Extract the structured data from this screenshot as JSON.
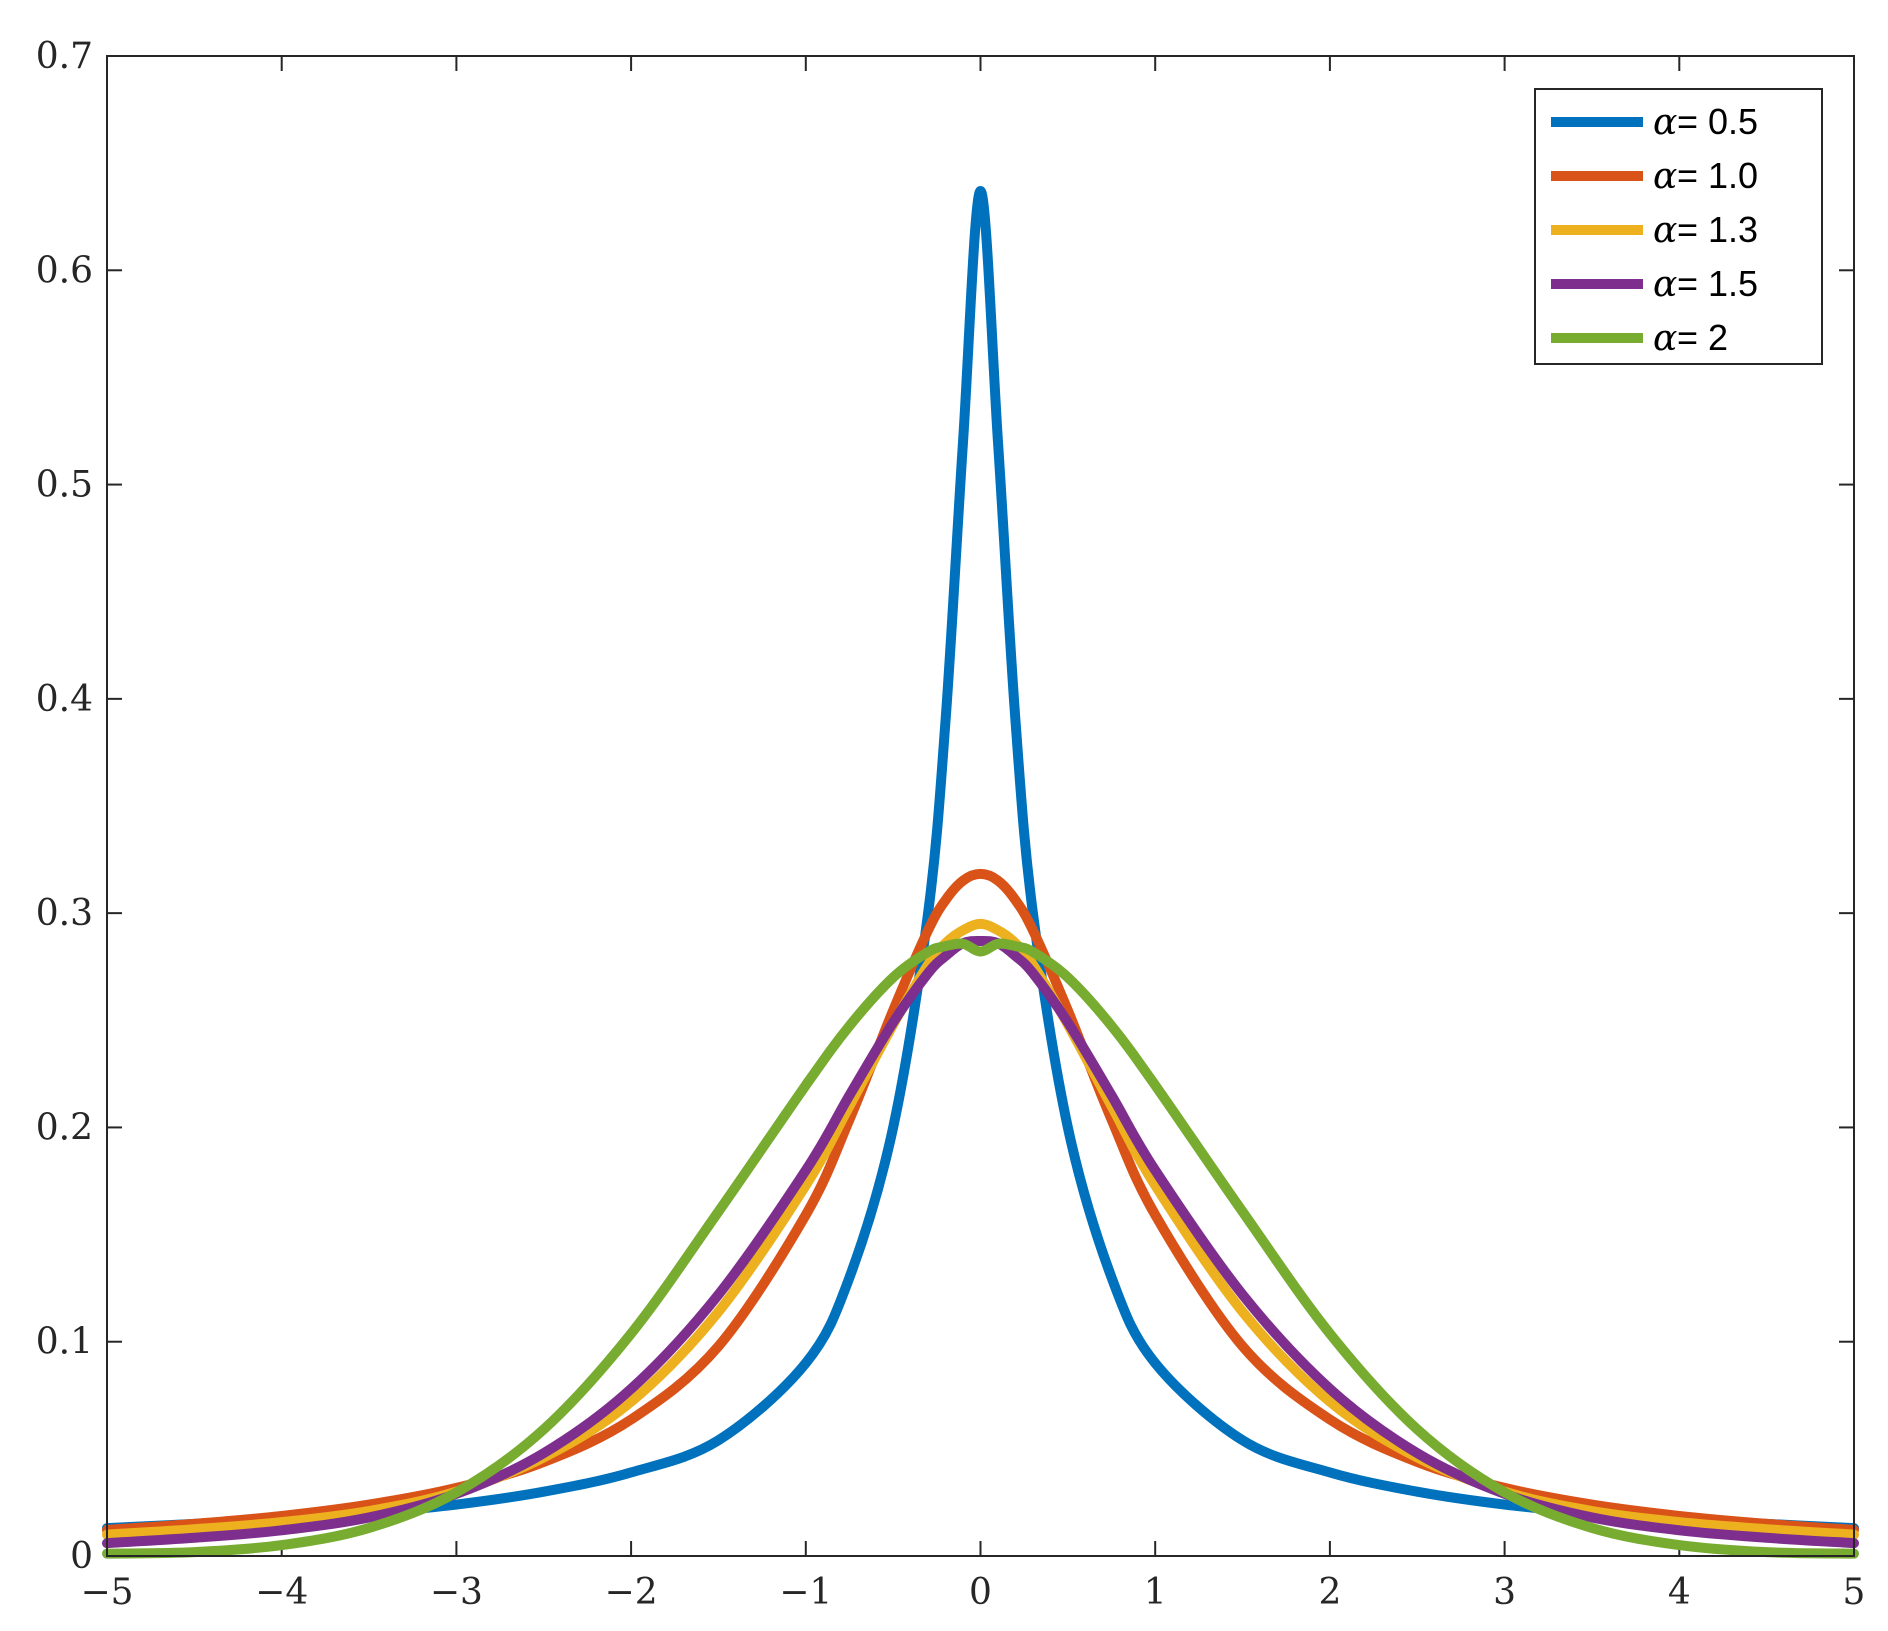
{
  "chart_data": {
    "type": "line",
    "title": "",
    "xlabel": "",
    "ylabel": "",
    "xlim": [
      -5,
      5
    ],
    "ylim": [
      0,
      0.7
    ],
    "grid": false,
    "legend_position": "top-right",
    "x_ticks": [
      -5,
      -4,
      -3,
      -2,
      -1,
      0,
      1,
      2,
      3,
      4,
      5
    ],
    "x_tick_labels": [
      "−5",
      "−4",
      "−3",
      "−2",
      "−1",
      "0",
      "1",
      "2",
      "3",
      "4",
      "5"
    ],
    "y_ticks": [
      0,
      0.1,
      0.2,
      0.3,
      0.4,
      0.5,
      0.6,
      0.7
    ],
    "y_tick_labels": [
      "0",
      "0.1",
      "0.2",
      "0.3",
      "0.4",
      "0.5",
      "0.6",
      "0.7"
    ],
    "x": [
      -5,
      -4.5,
      -4,
      -3.5,
      -3,
      -2.5,
      -2,
      -1.5,
      -1,
      -0.75,
      -0.5,
      -0.3,
      -0.2,
      -0.1,
      0,
      0.1,
      0.2,
      0.3,
      0.5,
      0.75,
      1,
      1.5,
      2,
      2.5,
      3,
      3.5,
      4,
      4.5,
      5
    ],
    "series": [
      {
        "name": "α = 0.5",
        "alpha_symbol": "α",
        "label_value": " = 0.5",
        "color": "#0072BD",
        "values": [
          0.013,
          0.015,
          0.017,
          0.02,
          0.024,
          0.03,
          0.039,
          0.054,
          0.09,
          0.13,
          0.2,
          0.3,
          0.39,
          0.52,
          0.637,
          0.52,
          0.39,
          0.3,
          0.2,
          0.13,
          0.09,
          0.054,
          0.039,
          0.03,
          0.024,
          0.02,
          0.017,
          0.015,
          0.013
        ]
      },
      {
        "name": "α = 1.0",
        "alpha_symbol": "α",
        "label_value": " = 1.0",
        "color": "#D95319",
        "values": [
          0.0122,
          0.015,
          0.0187,
          0.024,
          0.0318,
          0.0439,
          0.0637,
          0.0979,
          0.1592,
          0.2037,
          0.2546,
          0.292,
          0.3061,
          0.3152,
          0.3183,
          0.3152,
          0.3061,
          0.292,
          0.2546,
          0.2037,
          0.1592,
          0.0979,
          0.0637,
          0.0439,
          0.0318,
          0.024,
          0.0187,
          0.015,
          0.0122
        ]
      },
      {
        "name": "α = 1.3",
        "alpha_symbol": "α",
        "label_value": " = 1.3",
        "color": "#EDB120",
        "values": [
          0.01,
          0.0125,
          0.0158,
          0.021,
          0.03,
          0.046,
          0.072,
          0.114,
          0.173,
          0.21,
          0.248,
          0.276,
          0.286,
          0.292,
          0.295,
          0.292,
          0.286,
          0.276,
          0.248,
          0.21,
          0.173,
          0.114,
          0.072,
          0.046,
          0.03,
          0.021,
          0.0158,
          0.0125,
          0.01
        ]
      },
      {
        "name": "α = 1.5",
        "alpha_symbol": "α",
        "label_value": " = 1.5",
        "color": "#7E2F8E",
        "values": [
          0.006,
          0.0085,
          0.012,
          0.018,
          0.029,
          0.048,
          0.078,
          0.122,
          0.18,
          0.215,
          0.249,
          0.272,
          0.28,
          0.286,
          0.287,
          0.286,
          0.28,
          0.272,
          0.249,
          0.215,
          0.18,
          0.122,
          0.078,
          0.048,
          0.029,
          0.018,
          0.012,
          0.0085,
          0.006
        ]
      },
      {
        "name": "α = 2",
        "alpha_symbol": "α",
        "label_value": " = 2",
        "color": "#77AC30",
        "values": [
          0.0011,
          0.0018,
          0.0051,
          0.0131,
          0.0297,
          0.0591,
          0.1038,
          0.1607,
          0.2197,
          0.2474,
          0.27,
          0.2819,
          0.2846,
          0.2857,
          0.2821,
          0.2857,
          0.2846,
          0.2819,
          0.27,
          0.2474,
          0.2197,
          0.1607,
          0.1038,
          0.0591,
          0.0297,
          0.0131,
          0.0051,
          0.0018,
          0.0011
        ]
      }
    ]
  }
}
